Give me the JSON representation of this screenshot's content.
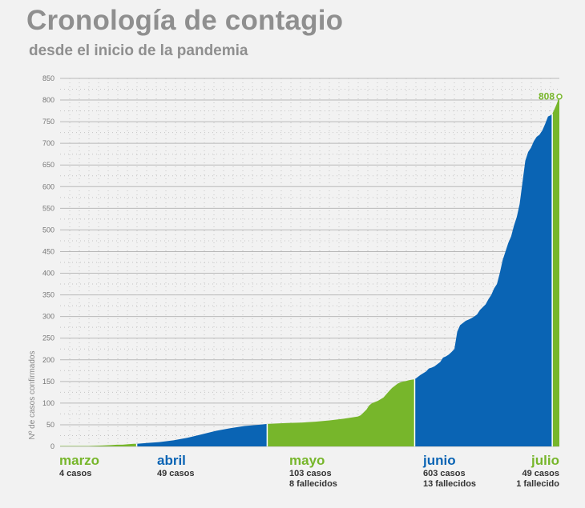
{
  "header": {
    "title": "Cronología de contagio",
    "subtitle": "desde el inicio de la pandemia"
  },
  "colors": {
    "green": "#77b62b",
    "blue": "#0a64b4",
    "grid": "#b5b5b5",
    "text": "#8f8f8f"
  },
  "chart_data": {
    "type": "area",
    "title": "Cronología de contagio",
    "subtitle": "desde el inicio de la pandemia",
    "ylabel": "Nº de casos confirmados",
    "ylim": [
      0,
      850
    ],
    "yticks": [
      0,
      50,
      100,
      150,
      200,
      250,
      300,
      350,
      400,
      450,
      500,
      550,
      600,
      650,
      700,
      750,
      800,
      850
    ],
    "grid": true,
    "x_unit": "days since first case",
    "series": [
      {
        "name": "marzo",
        "color": "#77b62b",
        "points": [
          [
            0,
            1
          ],
          [
            10,
            1
          ],
          [
            15,
            2
          ],
          [
            18,
            3
          ],
          [
            20,
            4
          ],
          [
            22,
            4
          ],
          [
            24,
            5
          ],
          [
            26,
            6
          ],
          [
            27,
            6
          ]
        ]
      },
      {
        "name": "abril",
        "color": "#0a64b4",
        "points": [
          [
            27,
            6
          ],
          [
            31,
            8
          ],
          [
            35,
            10
          ],
          [
            40,
            14
          ],
          [
            45,
            20
          ],
          [
            50,
            28
          ],
          [
            55,
            36
          ],
          [
            60,
            42
          ],
          [
            65,
            47
          ],
          [
            70,
            50
          ],
          [
            73,
            52
          ]
        ]
      },
      {
        "name": "mayo",
        "color": "#77b62b",
        "points": [
          [
            73,
            52
          ],
          [
            80,
            54
          ],
          [
            85,
            55
          ],
          [
            90,
            57
          ],
          [
            95,
            60
          ],
          [
            100,
            64
          ],
          [
            103,
            67
          ],
          [
            105,
            69
          ],
          [
            106,
            72
          ],
          [
            108,
            85
          ],
          [
            109,
            95
          ],
          [
            110,
            100
          ],
          [
            112,
            105
          ],
          [
            114,
            113
          ],
          [
            116,
            128
          ],
          [
            117,
            135
          ],
          [
            118,
            140
          ],
          [
            119,
            145
          ],
          [
            120,
            148
          ],
          [
            121,
            150
          ],
          [
            122,
            151
          ],
          [
            123,
            153
          ],
          [
            124,
            154
          ],
          [
            125,
            155
          ]
        ]
      },
      {
        "name": "junio",
        "color": "#0a64b4",
        "points": [
          [
            125,
            155
          ],
          [
            127,
            165
          ],
          [
            129,
            173
          ],
          [
            130,
            180
          ],
          [
            131,
            182
          ],
          [
            132,
            185
          ],
          [
            134,
            195
          ],
          [
            135,
            205
          ],
          [
            136,
            208
          ],
          [
            137,
            212
          ],
          [
            138,
            218
          ],
          [
            139,
            225
          ],
          [
            140,
            265
          ],
          [
            141,
            280
          ],
          [
            142,
            285
          ],
          [
            143,
            290
          ],
          [
            144,
            293
          ],
          [
            145,
            296
          ],
          [
            146,
            300
          ],
          [
            147,
            305
          ],
          [
            148,
            315
          ],
          [
            150,
            328
          ],
          [
            151,
            340
          ],
          [
            152,
            350
          ],
          [
            153,
            365
          ],
          [
            154,
            375
          ],
          [
            155,
            400
          ],
          [
            156,
            430
          ],
          [
            157,
            450
          ],
          [
            158,
            470
          ],
          [
            159,
            485
          ],
          [
            160,
            510
          ],
          [
            161,
            530
          ],
          [
            162,
            560
          ],
          [
            163,
            610
          ],
          [
            164,
            660
          ],
          [
            165,
            680
          ],
          [
            166,
            690
          ],
          [
            167,
            705
          ],
          [
            168,
            715
          ],
          [
            169,
            720
          ],
          [
            170,
            730
          ],
          [
            171,
            745
          ],
          [
            172,
            762
          ],
          [
            173,
            765
          ],
          [
            173.5,
            768
          ]
        ]
      },
      {
        "name": "julio",
        "color": "#77b62b",
        "points": [
          [
            173.5,
            768
          ],
          [
            174,
            775
          ],
          [
            175,
            790
          ],
          [
            176,
            808
          ]
        ]
      }
    ],
    "end_value": 808,
    "end_label": "808",
    "months": [
      {
        "name": "marzo",
        "color": "#77b62b",
        "lines": [
          "4 casos"
        ],
        "align": "left"
      },
      {
        "name": "abril",
        "color": "#0a64b4",
        "lines": [
          "49 casos"
        ],
        "align": "left"
      },
      {
        "name": "mayo",
        "color": "#77b62b",
        "lines": [
          "103 casos",
          "8 fallecidos"
        ],
        "align": "left"
      },
      {
        "name": "junio",
        "color": "#0a64b4",
        "lines": [
          "603 casos",
          "13 fallecidos"
        ],
        "align": "left"
      },
      {
        "name": "julio",
        "color": "#77b62b",
        "lines": [
          "49 casos",
          "1 fallecido"
        ],
        "align": "right"
      }
    ]
  }
}
